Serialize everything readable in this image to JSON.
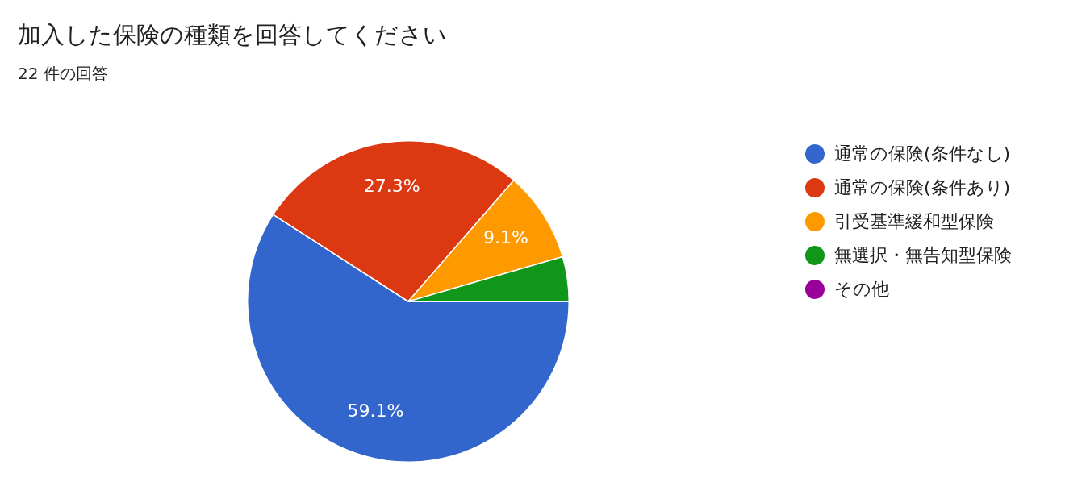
{
  "chart_data": {
    "type": "pie",
    "title": "加入した保険の種類を回答してください",
    "subtitle": "22 件の回答",
    "categories": [
      "通常の保険(条件なし)",
      "通常の保険(条件あり)",
      "引受基準緩和型保険",
      "無選択・無告知型保険",
      "その他"
    ],
    "values": [
      59.1,
      27.3,
      9.1,
      4.5,
      0
    ],
    "colors": [
      "#3366cc",
      "#dc3912",
      "#ff9900",
      "#109618",
      "#990099"
    ],
    "value_labels": [
      "59.1%",
      "27.3%",
      "9.1%",
      null,
      null
    ],
    "legend": "right"
  }
}
